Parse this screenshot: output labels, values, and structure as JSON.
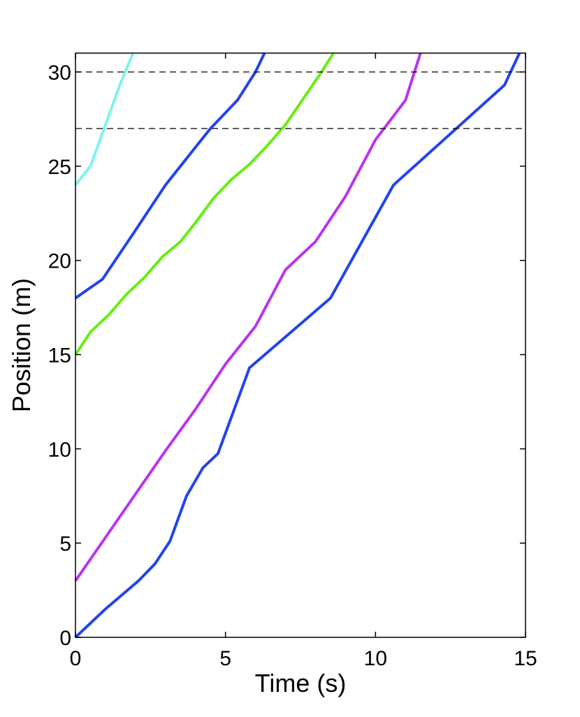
{
  "chart_data": {
    "type": "line",
    "title": "",
    "xlabel": "Time (s)",
    "ylabel": "Position (m)",
    "xlim": [
      0,
      15
    ],
    "ylim": [
      0,
      31
    ],
    "xticks": [
      0,
      5,
      10,
      15
    ],
    "yticks": [
      0,
      5,
      10,
      15,
      20,
      25,
      30
    ],
    "grid": false,
    "reference_lines": [
      {
        "y": 30,
        "style": "dashed",
        "color": "#000000"
      },
      {
        "y": 27,
        "style": "dashed",
        "color": "#000000"
      }
    ],
    "series": [
      {
        "color": "#7ef4ec",
        "x": [
          0.0,
          0.5,
          1.0,
          1.5,
          1.92
        ],
        "y": [
          24.0,
          25.0,
          27.2,
          29.4,
          31.0
        ]
      },
      {
        "color": "#2244ee",
        "x": [
          0.0,
          0.9,
          2.0,
          3.0,
          4.0,
          4.5,
          5.4,
          6.0,
          6.3
        ],
        "y": [
          18.0,
          19.0,
          21.6,
          24.0,
          26.0,
          27.0,
          28.5,
          30.0,
          31.0
        ]
      },
      {
        "color": "#66ee11",
        "x": [
          0.0,
          0.5,
          1.1,
          1.7,
          2.3,
          2.9,
          3.5,
          4.0,
          4.6,
          5.2,
          5.8,
          6.4,
          7.0,
          7.6,
          8.2,
          8.6
        ],
        "y": [
          15.0,
          16.2,
          17.1,
          18.2,
          19.1,
          20.2,
          21.0,
          22.0,
          23.3,
          24.3,
          25.1,
          26.1,
          27.2,
          28.6,
          30.0,
          31.0
        ]
      },
      {
        "color": "#bb33ee",
        "x": [
          0.0,
          1.0,
          2.0,
          3.0,
          4.0,
          5.0,
          6.0,
          7.0,
          8.0,
          9.0,
          10.0,
          11.0,
          11.5
        ],
        "y": [
          3.0,
          5.3,
          7.6,
          9.9,
          12.1,
          14.5,
          16.5,
          19.5,
          21.0,
          23.4,
          26.4,
          28.5,
          31.0
        ]
      },
      {
        "color": "#2244ee",
        "x": [
          0.0,
          1.0,
          2.1,
          2.65,
          3.15,
          3.7,
          4.25,
          4.75,
          5.8,
          8.5,
          10.6,
          14.3,
          14.8
        ],
        "y": [
          0.0,
          1.5,
          3.0,
          3.9,
          5.1,
          7.5,
          9.0,
          9.75,
          14.3,
          18.0,
          24.0,
          29.3,
          31.0
        ]
      }
    ]
  }
}
